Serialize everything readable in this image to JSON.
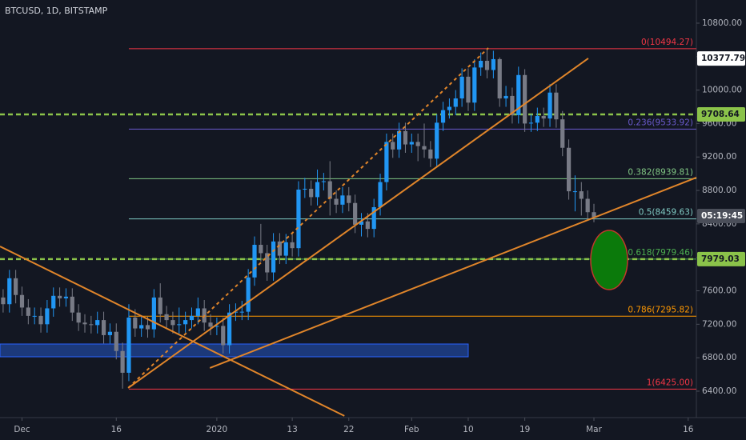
{
  "chart_data": {
    "type": "candlestick",
    "title": "BTCUSD, 1D, BITSTAMP",
    "up_color": "#2196f3",
    "down_color": "#787b86",
    "x": [
      -3,
      -2,
      -1,
      0,
      1,
      2,
      3,
      4,
      5,
      6,
      7,
      8,
      9,
      10,
      11,
      12,
      13,
      14,
      15,
      16,
      17,
      18,
      19,
      20,
      21,
      22,
      23,
      24,
      25,
      26,
      27,
      28,
      29,
      30,
      31,
      32,
      33,
      34,
      35,
      36,
      37,
      38,
      39,
      40,
      41,
      42,
      43,
      44,
      45,
      46,
      47,
      48,
      49,
      50,
      51,
      52,
      53,
      54,
      55,
      56,
      57,
      58,
      59,
      60,
      61,
      62,
      63,
      64,
      65,
      66,
      67,
      68,
      69,
      70,
      71,
      72,
      73,
      74,
      75,
      76,
      77,
      78,
      79,
      80,
      81,
      82,
      83,
      84,
      85,
      86,
      87,
      88,
      89,
      90,
      91
    ],
    "opens": [
      7520,
      7440,
      7750,
      7550,
      7400,
      7300,
      7300,
      7200,
      7390,
      7540,
      7510,
      7530,
      7340,
      7220,
      7200,
      7190,
      7250,
      7070,
      7110,
      6880,
      6620,
      7280,
      7150,
      7190,
      7140,
      7520,
      7320,
      7250,
      7190,
      7200,
      7250,
      7300,
      7390,
      7220,
      7170,
      7180,
      6950,
      7340,
      7350,
      7350,
      7760,
      8150,
      8050,
      7820,
      8190,
      8020,
      8180,
      8110,
      8810,
      8820,
      8720,
      8900,
      8910,
      8700,
      8630,
      8740,
      8650,
      8390,
      8430,
      8340,
      8600,
      8900,
      9380,
      9290,
      9510,
      9350,
      9380,
      9330,
      9290,
      9180,
      9610,
      9760,
      9800,
      9900,
      10160,
      9850,
      10270,
      10350,
      10240,
      10370,
      9900,
      9930,
      9700,
      10180,
      9600,
      9610,
      9690,
      9660,
      9970,
      9650,
      9310,
      8790,
      8790,
      8700,
      8540
    ],
    "highs": [
      7620,
      7850,
      7850,
      7650,
      7500,
      7400,
      7400,
      7490,
      7640,
      7640,
      7630,
      7630,
      7440,
      7320,
      7300,
      7350,
      7350,
      7210,
      7210,
      6980,
      7440,
      7380,
      7290,
      7290,
      7620,
      7690,
      7420,
      7350,
      7400,
      7350,
      7400,
      7520,
      7490,
      7320,
      7280,
      7280,
      7440,
      7450,
      7480,
      7860,
      8250,
      8400,
      8150,
      8290,
      8290,
      8280,
      8280,
      8910,
      8950,
      8920,
      9050,
      9010,
      9150,
      8800,
      8840,
      8840,
      8750,
      8530,
      8530,
      8700,
      9000,
      9480,
      9480,
      9610,
      9610,
      9480,
      9480,
      9600,
      9390,
      9710,
      9860,
      9900,
      10000,
      10260,
      10260,
      10370,
      10450,
      10494,
      10470,
      10390,
      10050,
      10030,
      10280,
      10250,
      9710,
      9790,
      9790,
      10070,
      10070,
      9750,
      9410,
      8980,
      8900,
      8800,
      8640
    ],
    "lows": [
      7340,
      7340,
      7450,
      7300,
      7200,
      7200,
      7100,
      7100,
      7290,
      7410,
      7410,
      7240,
      7120,
      7100,
      7090,
      7090,
      6970,
      6970,
      6780,
      6430,
      6520,
      7050,
      7050,
      7040,
      7040,
      7220,
      7150,
      7090,
      7090,
      7100,
      7150,
      7200,
      7120,
      7070,
      7070,
      6850,
      6850,
      7240,
      7250,
      7250,
      7660,
      7950,
      7720,
      7720,
      7920,
      7920,
      8010,
      8010,
      8710,
      8620,
      8620,
      8800,
      8500,
      8530,
      8530,
      8550,
      8290,
      8250,
      8240,
      8240,
      8500,
      8800,
      9190,
      9190,
      9250,
      9250,
      9150,
      9190,
      9080,
      9080,
      9510,
      9660,
      9700,
      9800,
      9750,
      9750,
      10170,
      10140,
      10140,
      9800,
      9800,
      9600,
      9600,
      9500,
      9500,
      9510,
      9560,
      9560,
      9550,
      9210,
      8690,
      8550,
      8500,
      8440,
      8420
    ],
    "closes": [
      7440,
      7750,
      7550,
      7400,
      7300,
      7300,
      7200,
      7390,
      7540,
      7510,
      7530,
      7340,
      7220,
      7200,
      7190,
      7250,
      7070,
      7110,
      6880,
      6620,
      7280,
      7150,
      7190,
      7140,
      7520,
      7320,
      7250,
      7190,
      7200,
      7250,
      7300,
      7390,
      7220,
      7170,
      7180,
      6950,
      7340,
      7350,
      7350,
      7760,
      8150,
      8050,
      7820,
      8190,
      8020,
      8180,
      8110,
      8810,
      8820,
      8720,
      8900,
      8910,
      8700,
      8630,
      8740,
      8650,
      8390,
      8430,
      8340,
      8600,
      8900,
      9380,
      9290,
      9510,
      9350,
      9380,
      9330,
      9290,
      9180,
      9610,
      9760,
      9800,
      9900,
      10160,
      9850,
      10270,
      10350,
      10240,
      10370,
      9900,
      9930,
      9700,
      10180,
      9600,
      9610,
      9690,
      9660,
      9970,
      9650,
      9310,
      8790,
      8790,
      8700,
      8540,
      8480
    ],
    "xlim": [
      -3.5,
      107.3
    ],
    "ylim": [
      6084,
      11077
    ],
    "xticks": [
      {
        "value": 0,
        "label": "Dec"
      },
      {
        "value": 15,
        "label": "16"
      },
      {
        "value": 31,
        "label": "2020"
      },
      {
        "value": 43,
        "label": "13"
      },
      {
        "value": 52,
        "label": "22"
      },
      {
        "value": 62,
        "label": "Feb"
      },
      {
        "value": 71,
        "label": "10"
      },
      {
        "value": 80,
        "label": "19"
      },
      {
        "value": 91,
        "label": "Mar"
      },
      {
        "value": 106,
        "label": "16"
      }
    ],
    "yticks": [
      {
        "value": 6400,
        "label": "6400.00"
      },
      {
        "value": 6800,
        "label": "6800.00"
      },
      {
        "value": 7200,
        "label": "7200.00"
      },
      {
        "value": 7600,
        "label": "7600.00"
      },
      {
        "value": 8000,
        "label": "8000.00"
      },
      {
        "value": 8400,
        "label": "8400.00"
      },
      {
        "value": 8800,
        "label": "8800.00"
      },
      {
        "value": 9200,
        "label": "9200.00"
      },
      {
        "value": 9600,
        "label": "9600.00"
      },
      {
        "value": 10000,
        "label": "10000.00"
      },
      {
        "value": 10400,
        "label": "10400.00"
      },
      {
        "value": 10800,
        "label": "10800.00"
      }
    ],
    "grid": false,
    "fib_start": 17,
    "fib_levels": [
      {
        "label": "0(10494.27)",
        "value": 10494.27,
        "color": "#f23645"
      },
      {
        "label": "0.236(9533.92)",
        "value": 9533.92,
        "color": "#6a5acd"
      },
      {
        "label": "0.382(8939.81)",
        "value": 8939.81,
        "color": "#81c784"
      },
      {
        "label": "0.5(8459.63)",
        "value": 8459.63,
        "color": "#80cbc4"
      },
      {
        "label": "0.618(7979.46)",
        "value": 7979.46,
        "color": "#4caf50"
      },
      {
        "label": "0.786(7295.82)",
        "value": 7295.82,
        "color": "#ff9800"
      },
      {
        "label": "1(6425.00)",
        "value": 6425,
        "color": "#f23645"
      }
    ],
    "price_tags": [
      {
        "label": "10377.79",
        "value": 10377.79,
        "color": "#ffffff",
        "text_color": "#131722",
        "line": false
      },
      {
        "label": "9708.64",
        "value": 9708.64,
        "color": "#8bc34a",
        "text_color": "#131722",
        "line": true
      },
      {
        "label": "05:19:45",
        "value": 8495,
        "color": "#4a4e59",
        "text_color": "#ffffff",
        "line": false
      },
      {
        "label": "7979.03",
        "value": 7979.03,
        "color": "#8bc34a",
        "text_color": "#131722",
        "line": true
      }
    ],
    "trendlines": [
      {
        "x": [
          -3.5,
          51.3
        ],
        "y": [
          8131,
          6104
        ],
        "dashed": false
      },
      {
        "x": [
          16.9,
          90.1
        ],
        "y": [
          6439,
          10379
        ],
        "dashed": false
      },
      {
        "x": [
          29.9,
          107.3
        ],
        "y": [
          6678,
          8954
        ],
        "dashed": false
      },
      {
        "x": [
          16.9,
          74.2
        ],
        "y": [
          6439,
          10503
        ],
        "dashed": true
      }
    ],
    "trend_color": "#e0852a",
    "zones": [
      {
        "x": [
          -3.5,
          71
        ],
        "y": [
          6811,
          6964
        ],
        "color": "#1e3f8a"
      }
    ]
  }
}
